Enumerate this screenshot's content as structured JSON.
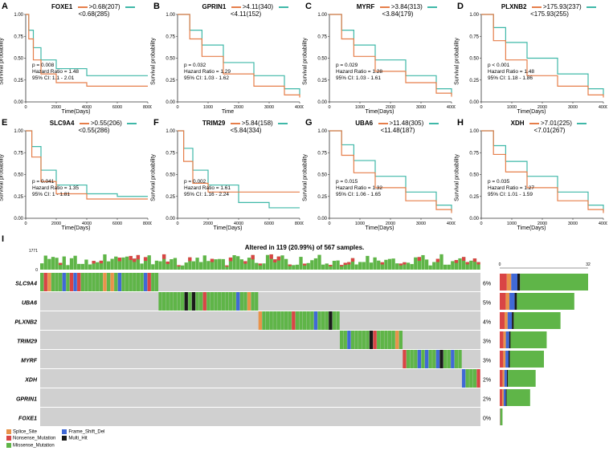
{
  "panels": {
    "A": {
      "gene": "FOXE1",
      "high_label": ">0.68(207)",
      "low_label": "<0.68(285)",
      "p": "p = 0.008",
      "hr": "Hazard Ratio = 1.48",
      "ci": "95% CI: 1.1 - 2.01",
      "xlabel": "Time(Days)",
      "ylabel": "Survival probability",
      "xmax": 8000,
      "high_color": "#e67e4a",
      "low_color": "#3fb8a8",
      "high_curve": [
        [
          0,
          1
        ],
        [
          200,
          0.72
        ],
        [
          500,
          0.48
        ],
        [
          1000,
          0.32
        ],
        [
          2000,
          0.22
        ],
        [
          4000,
          0.18
        ],
        [
          6000,
          0.18
        ],
        [
          8000,
          0.18
        ]
      ],
      "low_curve": [
        [
          0,
          1
        ],
        [
          200,
          0.82
        ],
        [
          500,
          0.62
        ],
        [
          1000,
          0.48
        ],
        [
          2000,
          0.38
        ],
        [
          4000,
          0.3
        ],
        [
          6000,
          0.3
        ],
        [
          8000,
          0.3
        ]
      ]
    },
    "B": {
      "gene": "GPRIN1",
      "high_label": ">4.11(340)",
      "low_label": "<4.11(152)",
      "p": "p = 0.032",
      "hr": "Hazard Ratio = 1.29",
      "ci": "95% CI: 1.03 - 1.62",
      "xlabel": "Time",
      "ylabel": "Survival probability",
      "xmax": 4000,
      "high_color": "#e67e4a",
      "low_color": "#3fb8a8",
      "high_curve": [
        [
          0,
          1
        ],
        [
          400,
          0.72
        ],
        [
          800,
          0.52
        ],
        [
          1500,
          0.32
        ],
        [
          2500,
          0.18
        ],
        [
          3500,
          0.08
        ],
        [
          4000,
          0.05
        ]
      ],
      "low_curve": [
        [
          0,
          1
        ],
        [
          400,
          0.82
        ],
        [
          800,
          0.65
        ],
        [
          1500,
          0.45
        ],
        [
          2500,
          0.3
        ],
        [
          3500,
          0.15
        ],
        [
          4000,
          0.08
        ]
      ]
    },
    "C": {
      "gene": "MYRF",
      "high_label": ">3.84(313)",
      "low_label": "<3.84(179)",
      "p": "p = 0.029",
      "hr": "Hazard Ratio = 1.28",
      "ci": "95% CI: 1.03 - 1.61",
      "xlabel": "Time(Days)",
      "ylabel": "Survival probability",
      "xmax": 4000,
      "high_color": "#e67e4a",
      "low_color": "#3fb8a8",
      "high_curve": [
        [
          0,
          1
        ],
        [
          400,
          0.72
        ],
        [
          800,
          0.52
        ],
        [
          1500,
          0.35
        ],
        [
          2500,
          0.22
        ],
        [
          3500,
          0.1
        ],
        [
          4000,
          0.06
        ]
      ],
      "low_curve": [
        [
          0,
          1
        ],
        [
          400,
          0.82
        ],
        [
          800,
          0.65
        ],
        [
          1500,
          0.48
        ],
        [
          2500,
          0.3
        ],
        [
          3500,
          0.15
        ],
        [
          4000,
          0.08
        ]
      ]
    },
    "D": {
      "gene": "PLXNB2",
      "high_label": ">175.93(237)",
      "low_label": "<175.93(255)",
      "p": "p < 0.001",
      "hr": "Hazard Ratio = 1.48",
      "ci": "95% CI: 1.18 - 1.86",
      "xlabel": "Time(Days)",
      "ylabel": "Survival probability",
      "xmax": 4000,
      "high_color": "#e67e4a",
      "low_color": "#3fb8a8",
      "high_curve": [
        [
          0,
          1
        ],
        [
          400,
          0.7
        ],
        [
          800,
          0.48
        ],
        [
          1500,
          0.3
        ],
        [
          2500,
          0.18
        ],
        [
          3500,
          0.08
        ],
        [
          4000,
          0.05
        ]
      ],
      "low_curve": [
        [
          0,
          1
        ],
        [
          400,
          0.85
        ],
        [
          800,
          0.68
        ],
        [
          1500,
          0.5
        ],
        [
          2500,
          0.32
        ],
        [
          3500,
          0.15
        ],
        [
          4000,
          0.08
        ]
      ]
    },
    "E": {
      "gene": "SLC9A4",
      "high_label": ">0.55(206)",
      "low_label": "<0.55(286)",
      "p": "p = 0.041",
      "hr": "Hazard Ratio = 1.35",
      "ci": "95% CI: 1 - 1.81",
      "xlabel": "Time(Days)",
      "ylabel": "Survival probability",
      "xmax": 8000,
      "high_color": "#e67e4a",
      "low_color": "#3fb8a8",
      "high_curve": [
        [
          0,
          1
        ],
        [
          400,
          0.7
        ],
        [
          1000,
          0.42
        ],
        [
          2000,
          0.28
        ],
        [
          4000,
          0.22
        ],
        [
          6000,
          0.22
        ],
        [
          8000,
          0.22
        ]
      ],
      "low_curve": [
        [
          0,
          1
        ],
        [
          400,
          0.82
        ],
        [
          1000,
          0.55
        ],
        [
          2000,
          0.38
        ],
        [
          4000,
          0.28
        ],
        [
          6000,
          0.25
        ],
        [
          8000,
          0.25
        ]
      ]
    },
    "F": {
      "gene": "TRIM29",
      "high_label": ">5.84(158)",
      "low_label": "<5.84(334)",
      "p": "p = 0.002",
      "hr": "Hazard Ratio = 1.61",
      "ci": "95% CI: 1.16 - 2.24",
      "xlabel": "Time(Days)",
      "ylabel": "Survival probability",
      "xmax": 8000,
      "high_color": "#e67e4a",
      "low_color": "#3fb8a8",
      "high_curve": [
        [
          0,
          1
        ],
        [
          400,
          0.65
        ],
        [
          1000,
          0.4
        ],
        [
          2000,
          0.3
        ],
        [
          4000,
          0.3
        ],
        [
          6000,
          0.3
        ],
        [
          8000,
          0.3
        ]
      ],
      "low_curve": [
        [
          0,
          1
        ],
        [
          400,
          0.8
        ],
        [
          1000,
          0.55
        ],
        [
          2000,
          0.38
        ],
        [
          4000,
          0.18
        ],
        [
          6000,
          0.12
        ],
        [
          8000,
          0.12
        ]
      ]
    },
    "G": {
      "gene": "UBA6",
      "high_label": ">11.48(305)",
      "low_label": "<11.48(187)",
      "p": "p = 0.015",
      "hr": "Hazard Ratio = 1.32",
      "ci": "95% CI: 1.06 - 1.65",
      "xlabel": "Time(Days)",
      "ylabel": "Survival probability",
      "xmax": 4000,
      "high_color": "#e67e4a",
      "low_color": "#3fb8a8",
      "high_curve": [
        [
          0,
          1
        ],
        [
          400,
          0.72
        ],
        [
          800,
          0.52
        ],
        [
          1500,
          0.35
        ],
        [
          2500,
          0.2
        ],
        [
          3500,
          0.1
        ],
        [
          4000,
          0.06
        ]
      ],
      "low_curve": [
        [
          0,
          1
        ],
        [
          400,
          0.84
        ],
        [
          800,
          0.66
        ],
        [
          1500,
          0.48
        ],
        [
          2500,
          0.3
        ],
        [
          3500,
          0.15
        ],
        [
          4000,
          0.08
        ]
      ]
    },
    "H": {
      "gene": "XDH",
      "high_label": ">7.01(225)",
      "low_label": "<7.01(267)",
      "p": "p = 0.035",
      "hr": "Hazard Ratio = 1.27",
      "ci": "95% CI: 1.01 - 1.59",
      "xlabel": "Time(Days)",
      "ylabel": "Survival probability",
      "xmax": 4000,
      "high_color": "#e67e4a",
      "low_color": "#3fb8a8",
      "high_curve": [
        [
          0,
          1
        ],
        [
          400,
          0.73
        ],
        [
          800,
          0.53
        ],
        [
          1500,
          0.35
        ],
        [
          2500,
          0.2
        ],
        [
          3500,
          0.1
        ],
        [
          4000,
          0.06
        ]
      ],
      "low_curve": [
        [
          0,
          1
        ],
        [
          400,
          0.83
        ],
        [
          800,
          0.65
        ],
        [
          1500,
          0.48
        ],
        [
          2500,
          0.3
        ],
        [
          3500,
          0.15
        ],
        [
          4000,
          0.08
        ]
      ]
    }
  },
  "panel_order_row1": [
    "A",
    "B",
    "C",
    "D"
  ],
  "panel_order_row2": [
    "E",
    "F",
    "G",
    "H"
  ],
  "oncoplot": {
    "label": "I",
    "title": "Altered in 119 (20.99%) of 567 samples.",
    "genes": [
      "SLC9A4",
      "UBA6",
      "PLXNB2",
      "TRIM29",
      "MYRF",
      "XDH",
      "GPRIN1",
      "FOXE1"
    ],
    "percentages": [
      "6%",
      "5%",
      "4%",
      "3%",
      "3%",
      "2%",
      "2%",
      "0%"
    ],
    "bar_counts": [
      32,
      27,
      22,
      17,
      16,
      13,
      11,
      1
    ],
    "bar_max": 32,
    "top_bar_max": 1771,
    "colors": {
      "missense": "#5fb548",
      "nonsense": "#d94545",
      "splice": "#e8934a",
      "frameshift": "#4069d6",
      "multi": "#1a1a1a",
      "bg": "#d0d0d0"
    },
    "legend": [
      {
        "label": "Splice_Site",
        "color": "#e8934a"
      },
      {
        "label": "Nonsense_Mutation",
        "color": "#d94545"
      },
      {
        "label": "Missense_Mutation",
        "color": "#5fb548"
      },
      {
        "label": "Frame_Shift_Del",
        "color": "#4069d6"
      },
      {
        "label": "Multi_Hit",
        "color": "#1a1a1a"
      }
    ]
  },
  "y_ticks": [
    "0.00",
    "0.25",
    "0.50",
    "0.75",
    "1.00"
  ]
}
